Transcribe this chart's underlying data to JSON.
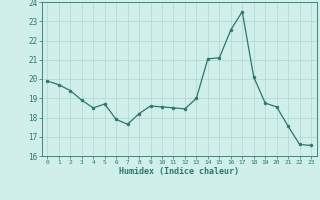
{
  "x": [
    0,
    1,
    2,
    3,
    4,
    5,
    6,
    7,
    8,
    9,
    10,
    11,
    12,
    13,
    14,
    15,
    16,
    17,
    18,
    19,
    20,
    21,
    22,
    23
  ],
  "y": [
    19.9,
    19.7,
    19.4,
    18.9,
    18.5,
    18.7,
    17.9,
    17.65,
    18.2,
    18.6,
    18.55,
    18.5,
    18.45,
    19.0,
    21.05,
    21.1,
    22.55,
    23.5,
    20.1,
    18.75,
    18.55,
    17.55,
    16.6,
    16.55
  ],
  "line_color": "#267a6e",
  "marker_color": "#267a6e",
  "bg_color": "#d0eeea",
  "grid_color": "#b0d8d4",
  "xlabel": "Humidex (Indice chaleur)",
  "ylim": [
    16,
    24
  ],
  "xlim": [
    -0.5,
    23.5
  ],
  "yticks": [
    16,
    17,
    18,
    19,
    20,
    21,
    22,
    23,
    24
  ],
  "xticks": [
    0,
    1,
    2,
    3,
    4,
    5,
    6,
    7,
    8,
    9,
    10,
    11,
    12,
    13,
    14,
    15,
    16,
    17,
    18,
    19,
    20,
    21,
    22,
    23
  ],
  "xtick_labels": [
    "0",
    "1",
    "2",
    "3",
    "4",
    "5",
    "6",
    "7",
    "8",
    "9",
    "10",
    "11",
    "12",
    "13",
    "14",
    "15",
    "16",
    "17",
    "18",
    "19",
    "20",
    "21",
    "22",
    "23"
  ],
  "tick_color": "#267a6e",
  "label_color": "#267a6e",
  "spine_color": "#267a6e"
}
